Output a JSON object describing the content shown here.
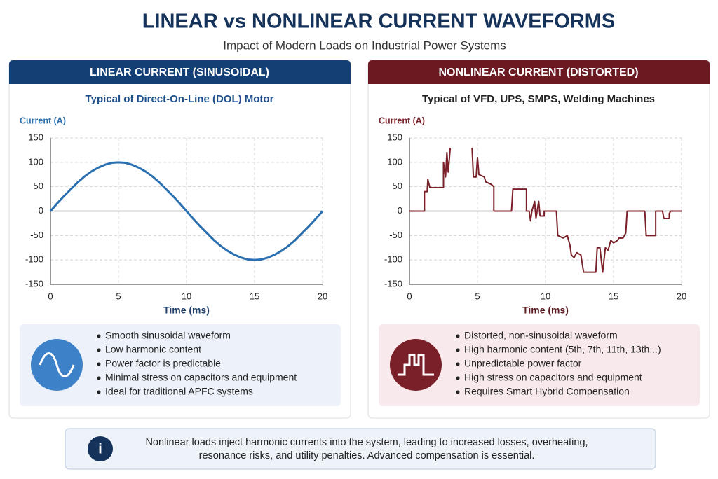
{
  "title": "LINEAR vs NONLINEAR CURRENT WAVEFORMS",
  "subtitle": "Impact of Modern Loads on Industrial Power Systems",
  "chart_data": [
    {
      "type": "line",
      "header": "LINEAR CURRENT (SINUSOIDAL)",
      "header_color": "#143f74",
      "color": "#2a6fb0",
      "title": "Typical of Direct-On-Line (DOL) Motor",
      "y_label": "Current (A)",
      "x_label": "Time (ms)",
      "x": [
        0,
        0.5,
        1,
        1.5,
        2,
        2.5,
        3,
        3.5,
        4,
        4.5,
        5,
        5.5,
        6,
        6.5,
        7,
        7.5,
        8,
        8.5,
        9,
        9.5,
        10,
        10.5,
        11,
        11.5,
        12,
        12.5,
        13,
        13.5,
        14,
        14.5,
        15,
        15.5,
        16,
        16.5,
        17,
        17.5,
        18,
        18.5,
        19,
        19.5,
        20
      ],
      "values": [
        0,
        16,
        31,
        45,
        59,
        71,
        81,
        89,
        95,
        99,
        100,
        99,
        95,
        89,
        81,
        71,
        59,
        45,
        31,
        16,
        0,
        -16,
        -31,
        -45,
        -59,
        -71,
        -81,
        -89,
        -95,
        -99,
        -100,
        -99,
        -95,
        -89,
        -81,
        -71,
        -59,
        -45,
        -31,
        -16,
        0
      ],
      "xlim": [
        0,
        20
      ],
      "xticks": [
        0,
        5,
        10,
        15,
        20
      ],
      "ylim": [
        -150,
        150
      ],
      "yticks": [
        -150,
        -100,
        -50,
        0,
        50,
        100,
        150
      ],
      "grid": true,
      "bullets": [
        "Smooth sinusoidal waveform",
        "Low harmonic content",
        "Power factor is predictable",
        "Minimal stress on capacitors and equipment",
        "Ideal for traditional APFC systems"
      ]
    },
    {
      "type": "line",
      "header": "NONLINEAR CURRENT (DISTORTED)",
      "header_color": "#6b1a22",
      "color": "#7a2029",
      "title": "Typical of VFD, UPS, SMPS, Welding Machines",
      "y_label": "Current (A)",
      "x_label": "Time (ms)",
      "x": [
        0,
        1.1,
        1.1,
        1.3,
        1.35,
        1.5,
        2.5,
        2.5,
        2.65,
        2.75,
        2.85,
        3.0,
        3.5,
        4.6,
        4.7,
        4.9,
        5.0,
        5.1,
        5.5,
        5.6,
        6.0,
        6.2,
        6.2,
        7.5,
        7.6,
        8.6,
        8.6,
        8.8,
        8.9,
        9.0,
        9.2,
        9.3,
        9.5,
        9.6,
        9.9,
        9.9,
        10.8,
        10.9,
        11.3,
        11.6,
        11.8,
        11.9,
        12.1,
        12.3,
        12.6,
        12.8,
        13.7,
        13.8,
        14.0,
        14.2,
        14.4,
        14.6,
        14.8,
        15.0,
        15.3,
        15.4,
        15.7,
        15.9,
        16.0,
        17.3,
        17.4,
        18.1,
        18.1,
        18.6,
        18.7,
        19.1,
        19.1,
        19.2,
        20
      ],
      "values": [
        0,
        0,
        40,
        40,
        65,
        48,
        48,
        100,
        70,
        120,
        80,
        130,
        null,
        130,
        70,
        70,
        110,
        75,
        70,
        60,
        55,
        50,
        0,
        0,
        45,
        45,
        0,
        0,
        -20,
        0,
        20,
        -15,
        20,
        -10,
        -10,
        0,
        0,
        -50,
        -55,
        -50,
        -70,
        -90,
        -95,
        -85,
        -90,
        -125,
        -125,
        -75,
        -75,
        -125,
        -75,
        -80,
        -60,
        -65,
        -60,
        -55,
        -55,
        -45,
        0,
        0,
        -50,
        -50,
        0,
        0,
        -15,
        -15,
        -5,
        0,
        0
      ],
      "xlim": [
        0,
        20
      ],
      "xticks": [
        0,
        5,
        10,
        15,
        20
      ],
      "ylim": [
        -150,
        150
      ],
      "yticks": [
        -150,
        -100,
        -50,
        0,
        50,
        100,
        150
      ],
      "grid": true,
      "bullets": [
        "Distorted, non-sinusoidal waveform",
        "High harmonic content (5th, 7th, 11th, 13th...)",
        "Unpredictable power factor",
        "High stress on capacitors and equipment",
        "Requires Smart Hybrid Compensation"
      ]
    }
  ],
  "footer": [
    "Nonlinear loads inject harmonic currents into the system, leading to increased losses, overheating,",
    "resonance risks, and utility penalties. Advanced compensation is essential."
  ]
}
